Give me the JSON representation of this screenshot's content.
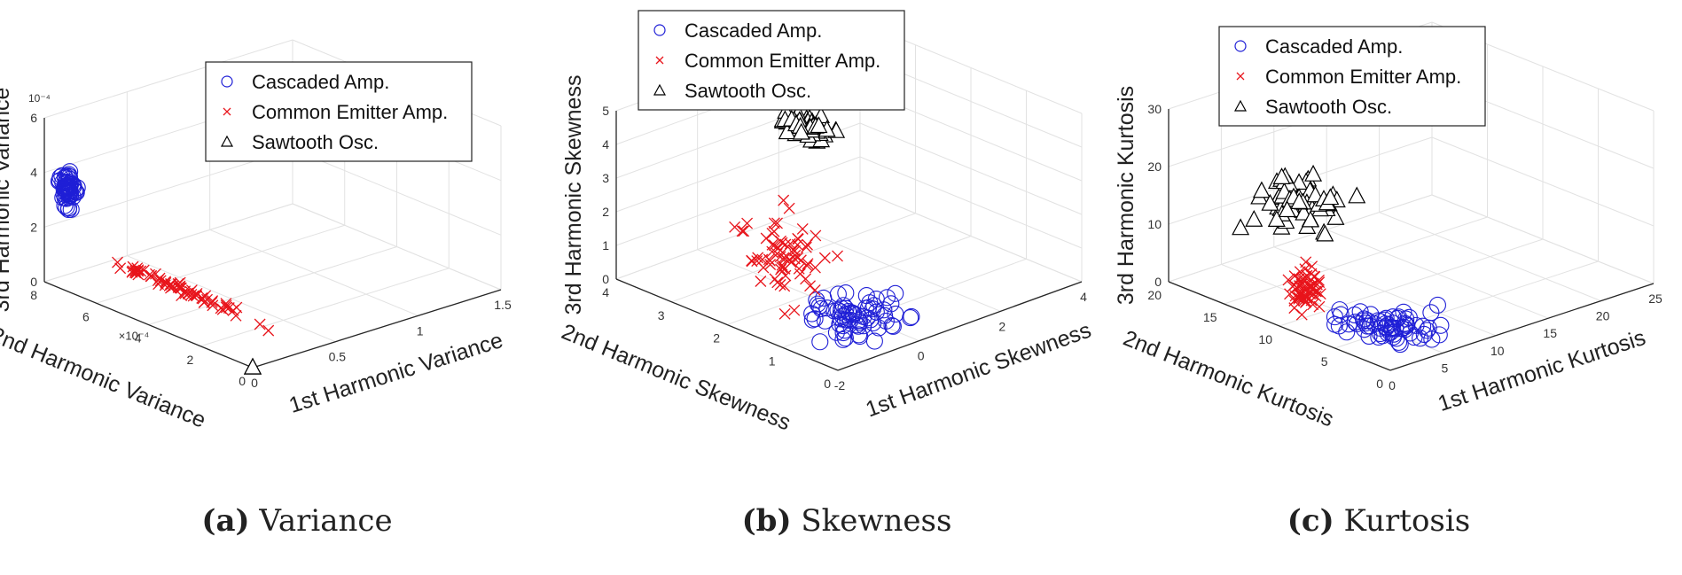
{
  "colors": {
    "cascaded": "#1f1fd6",
    "common_emitter": "#e8141b",
    "sawtooth": "#000000",
    "grid": "#e2e2e2",
    "axis": "#262626"
  },
  "chart_data": [
    {
      "type": "scatter",
      "caption_tag": "(a)",
      "caption_text": "Variance",
      "xlabel": "1st Harmonic Variance",
      "ylabel": "2nd Harmonic Variance",
      "zlabel": "3rd Harmonic Variance",
      "xlim": [
        0,
        1.5
      ],
      "ylim": [
        0,
        8
      ],
      "zlim": [
        0,
        6
      ],
      "xticks": [
        "0",
        "0.5",
        "1",
        "1.5"
      ],
      "yticks": [
        "0",
        "2",
        "4",
        "6",
        "8"
      ],
      "zticks": [
        "0",
        "2",
        "4",
        "6"
      ],
      "y_exponent": "×10⁻⁴",
      "z_exponent": "10⁻⁴",
      "grid": true,
      "legend_position": "top-right",
      "series": [
        {
          "name": "Cascaded Amp.",
          "marker": "circle",
          "cluster": {
            "x": [
              0.0,
              0.0
            ],
            "y": [
              6.8,
              7.4
            ],
            "z": [
              2.9,
              4.7
            ]
          },
          "n": 60
        },
        {
          "name": "Common Emitter Amp.",
          "marker": "x",
          "cluster": {
            "x": [
              0.0,
              0.0
            ],
            "y": [
              0.3,
              5.6
            ],
            "z": [
              1.6,
              2.0
            ]
          },
          "n": 70
        },
        {
          "name": "Sawtooth Osc.",
          "marker": "triangle",
          "cluster": {
            "x": [
              0.0,
              0.0
            ],
            "y": [
              0.0,
              0.0
            ],
            "z": [
              0.0,
              0.0
            ]
          },
          "n": 3
        }
      ]
    },
    {
      "type": "scatter",
      "caption_tag": "(b)",
      "caption_text": "Skewness",
      "xlabel": "1st Harmonic Skewness",
      "ylabel": "2nd Harmonic Skewness",
      "zlabel": "3rd Harmonic Skewness",
      "xlim": [
        -2,
        4
      ],
      "ylim": [
        0,
        4
      ],
      "zlim": [
        0,
        5
      ],
      "xticks": [
        "-2",
        "0",
        "2",
        "4"
      ],
      "yticks": [
        "0",
        "1",
        "2",
        "3",
        "4"
      ],
      "zticks": [
        "0",
        "1",
        "2",
        "3",
        "4",
        "5"
      ],
      "grid": true,
      "legend_position": "top-left",
      "series": [
        {
          "name": "Cascaded Amp.",
          "marker": "circle",
          "cluster": {
            "x": [
              -1.4,
              0.8
            ],
            "y": [
              0.2,
              1.9
            ],
            "z": [
              0.0,
              0.3
            ]
          },
          "n": 70
        },
        {
          "name": "Common Emitter Amp.",
          "marker": "x",
          "cluster": {
            "x": [
              -0.9,
              0.2
            ],
            "y": [
              1.5,
              2.8
            ],
            "z": [
              0.2,
              2.6
            ]
          },
          "n": 70
        },
        {
          "name": "Sawtooth Osc.",
          "marker": "triangle",
          "cluster": {
            "x": [
              0.2,
              0.8
            ],
            "y": [
              2.0,
              2.8
            ],
            "z": [
              4.2,
              4.8
            ]
          },
          "n": 70
        }
      ]
    },
    {
      "type": "scatter",
      "caption_tag": "(c)",
      "caption_text": "Kurtosis",
      "xlabel": "1st Harmonic Kurtosis",
      "ylabel": "2nd Harmonic Kurtosis",
      "zlabel": "3rd Harmonic Kurtosis",
      "xlim": [
        0,
        25
      ],
      "ylim": [
        0,
        20
      ],
      "zlim": [
        0,
        30
      ],
      "xticks": [
        "0",
        "5",
        "10",
        "15",
        "20",
        "25"
      ],
      "yticks": [
        "0",
        "5",
        "10",
        "15",
        "20"
      ],
      "zticks": [
        "0",
        "10",
        "20",
        "30"
      ],
      "grid": true,
      "legend_position": "top-left",
      "series": [
        {
          "name": "Cascaded Amp.",
          "marker": "circle",
          "cluster": {
            "x": [
              2,
              9
            ],
            "y": [
              1,
              9
            ],
            "z": [
              0,
              1
            ]
          },
          "n": 70
        },
        {
          "name": "Common Emitter Amp.",
          "marker": "x",
          "cluster": {
            "x": [
              1,
              3
            ],
            "y": [
              8,
              11
            ],
            "z": [
              1,
              10
            ]
          },
          "n": 60
        },
        {
          "name": "Sawtooth Osc.",
          "marker": "triangle",
          "cluster": {
            "x": [
              2,
              8
            ],
            "y": [
              10,
              16
            ],
            "z": [
              12,
              20
            ]
          },
          "n": 70
        }
      ]
    }
  ]
}
